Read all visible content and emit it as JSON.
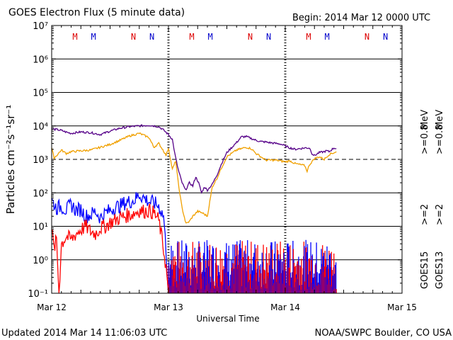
{
  "chart_data": {
    "type": "line",
    "title": "GOES Electron Flux (5 minute data)",
    "begin_label": "Begin: 2014 Mar 12 0000 UTC",
    "xlabel": "Universal Time",
    "ylabel": "Particles cm⁻²s⁻¹sr⁻¹",
    "y_scale": "log",
    "ylim": [
      0.1,
      10000000
    ],
    "y_ticks": [
      {
        "value": 0.1,
        "label": "10⁻¹"
      },
      {
        "value": 1,
        "label": "10⁰"
      },
      {
        "value": 10,
        "label": "10¹"
      },
      {
        "value": 100,
        "label": "10²"
      },
      {
        "value": 1000,
        "label": "10³"
      },
      {
        "value": 10000,
        "label": "10⁴"
      },
      {
        "value": 100000,
        "label": "10⁵"
      },
      {
        "value": 1000000,
        "label": "10⁶"
      },
      {
        "value": 10000000,
        "label": "10⁷"
      }
    ],
    "xlim": [
      0,
      72
    ],
    "x_unit": "hours since 2014 Mar 12 0000 UTC",
    "x_ticks": [
      {
        "value": 0,
        "label": "Mar 12"
      },
      {
        "value": 24,
        "label": "Mar 13"
      },
      {
        "value": 48,
        "label": "Mar 14"
      },
      {
        "value": 72,
        "label": "Mar 15"
      }
    ],
    "grid": "horizontal decades",
    "threshold_line": 1000,
    "day_markers": [
      24,
      48
    ],
    "local_time_markers": [
      {
        "x": 4.8,
        "label": "M",
        "color": "#dd0000"
      },
      {
        "x": 8.6,
        "label": "M",
        "color": "#0000cc"
      },
      {
        "x": 16.8,
        "label": "N",
        "color": "#dd0000"
      },
      {
        "x": 20.6,
        "label": "N",
        "color": "#0000cc"
      },
      {
        "x": 28.8,
        "label": "M",
        "color": "#dd0000"
      },
      {
        "x": 32.6,
        "label": "M",
        "color": "#0000cc"
      },
      {
        "x": 40.8,
        "label": "N",
        "color": "#dd0000"
      },
      {
        "x": 44.6,
        "label": "N",
        "color": "#0000cc"
      },
      {
        "x": 52.8,
        "label": "M",
        "color": "#dd0000"
      },
      {
        "x": 56.6,
        "label": "M",
        "color": "#0000cc"
      },
      {
        "x": 64.8,
        "label": "N",
        "color": "#dd0000"
      },
      {
        "x": 68.6,
        "label": "N",
        "color": "#0000cc"
      }
    ],
    "legend": {
      "placement": "right",
      "groups": [
        {
          "satellite": "GOES15",
          "color": "#000000",
          "items": [
            {
              "label": ">=0.8 MeV",
              "color": "#550088"
            },
            {
              "label": ">=2 MeV",
              "color": "#0000ff"
            }
          ]
        },
        {
          "satellite": "GOES13",
          "color": "#000000",
          "items": [
            {
              "label": ">=0.8 MeV",
              "color": "#f0a000"
            },
            {
              "label": ">=2 MeV",
              "color": "#ff0000"
            }
          ]
        }
      ],
      "mev_label": "MeV"
    },
    "series": [
      {
        "name": "GOES15 >=0.8 MeV",
        "color": "#550088",
        "x": [
          0,
          1,
          2,
          3,
          4,
          6,
          8,
          10,
          12,
          14,
          16,
          18,
          20,
          22,
          23,
          24,
          24.8,
          25.3,
          26,
          26.8,
          27.5,
          28.3,
          29,
          29.6,
          30.2,
          30.8,
          31.4,
          32,
          33,
          34,
          35,
          36,
          38,
          39,
          40,
          42,
          43,
          44,
          46,
          47,
          48,
          49,
          50,
          52,
          53,
          53.5,
          54,
          55,
          56,
          56.5,
          57,
          58,
          58.5
        ],
        "y": [
          8000,
          7800,
          7300,
          6500,
          6000,
          6600,
          6300,
          5500,
          7000,
          8500,
          9500,
          10000,
          10500,
          9500,
          7500,
          5500,
          4000,
          1500,
          500,
          200,
          120,
          200,
          160,
          300,
          200,
          100,
          150,
          120,
          180,
          350,
          800,
          1600,
          3200,
          4700,
          4800,
          3700,
          3400,
          3300,
          3000,
          2900,
          2500,
          2200,
          2000,
          2200,
          2200,
          1500,
          1300,
          1600,
          1700,
          1800,
          1700,
          2200,
          2100
        ]
      },
      {
        "name": "GOES13 >=0.8 MeV",
        "color": "#f0a000",
        "x": [
          0,
          0.5,
          1,
          2,
          3,
          4,
          6,
          8,
          10,
          12,
          14,
          16,
          18,
          20,
          21,
          22,
          23,
          23.5,
          24,
          24.8,
          25.5,
          26,
          26.8,
          27.6,
          28.3,
          29,
          30,
          31,
          32,
          33,
          34,
          35,
          36,
          38,
          40,
          41,
          42,
          44,
          46,
          48,
          49,
          50,
          52,
          52.5,
          53,
          54,
          55,
          56,
          57,
          58.5
        ],
        "y": [
          2200,
          1100,
          1300,
          1900,
          1500,
          1700,
          1800,
          1900,
          2300,
          2800,
          3700,
          5000,
          6000,
          4500,
          2300,
          3000,
          1800,
          1300,
          2200,
          500,
          900,
          200,
          35,
          12,
          14,
          20,
          28,
          25,
          20,
          150,
          280,
          600,
          1200,
          1900,
          2300,
          2100,
          1500,
          950,
          950,
          850,
          900,
          750,
          650,
          450,
          700,
          1050,
          1200,
          1000,
          1400,
          1700
        ]
      },
      {
        "name": "GOES15 >=2 MeV",
        "color": "#0000ff",
        "x": [
          0,
          1,
          2,
          3,
          4,
          5,
          6,
          7,
          8,
          9,
          10,
          11,
          12,
          13,
          14,
          15,
          16,
          17,
          18,
          19,
          20,
          21,
          22,
          23,
          23.5,
          24
        ],
        "y": [
          60,
          35,
          40,
          30,
          45,
          30,
          32,
          20,
          22,
          28,
          18,
          25,
          30,
          38,
          40,
          50,
          55,
          60,
          90,
          70,
          55,
          50,
          40,
          20,
          2,
          0.1
        ]
      },
      {
        "name": "GOES13 >=2 MeV",
        "color": "#ff0000",
        "x": [
          0,
          0.5,
          1,
          1.5,
          2,
          3,
          4,
          5,
          6,
          7,
          8,
          9,
          10,
          11,
          12,
          13,
          14,
          15,
          16,
          17,
          18,
          19,
          20,
          21,
          22,
          22.5,
          23,
          23.5,
          24
        ],
        "y": [
          8,
          2,
          4,
          0.1,
          3,
          5,
          4,
          6,
          8,
          10,
          7,
          6,
          9,
          10,
          13,
          15,
          18,
          20,
          22,
          25,
          30,
          28,
          30,
          25,
          15,
          6,
          2,
          0.6,
          0.1
        ]
      }
    ],
    "noise_bars": {
      "x_range": [
        24,
        58.5
      ],
      "floor": 0.1,
      "cap": 5,
      "colors": [
        "#ff0000",
        "#0000ff"
      ]
    }
  },
  "footer": {
    "updated": "Updated 2014 Mar 14 11:06:03 UTC",
    "credit": "NOAA/SWPC Boulder, CO USA"
  }
}
